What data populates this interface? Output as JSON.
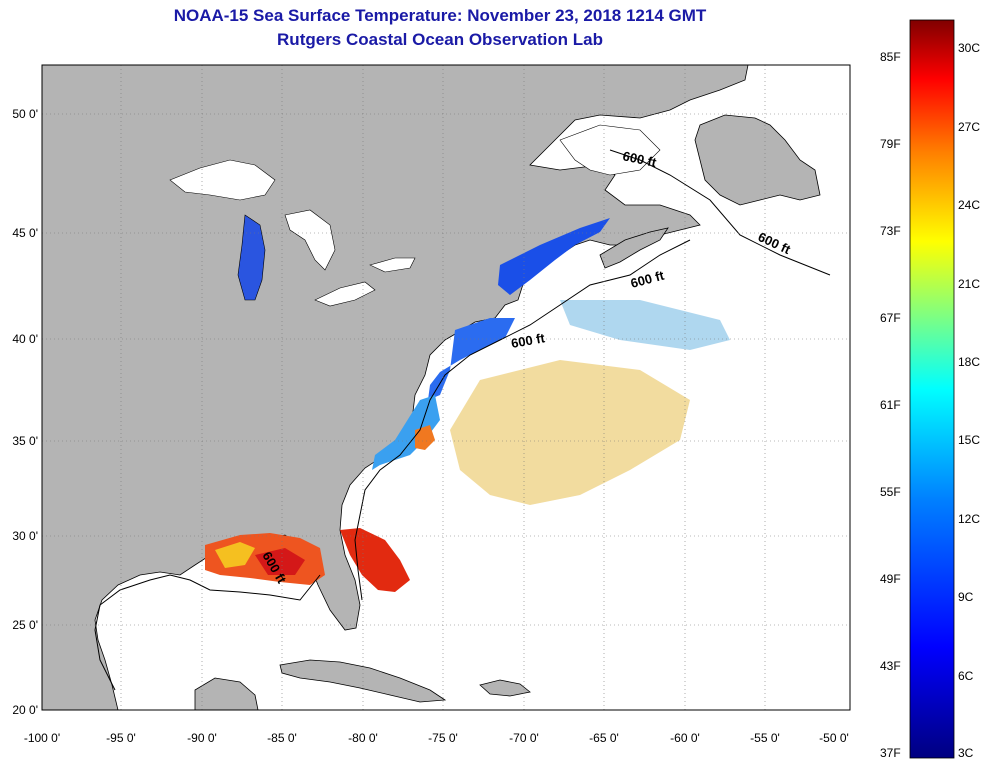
{
  "title": {
    "line1": "NOAA-15 Sea Surface Temperature:  November 23, 2018 1214 GMT",
    "line2": "Rutgers Coastal Ocean Observation Lab"
  },
  "map": {
    "lon_range": [
      -100,
      -50
    ],
    "lat_range": [
      20,
      52
    ],
    "lon_ticks": [
      "-100 0'",
      "-95 0'",
      "-90 0'",
      "-85 0'",
      "-80 0'",
      "-75 0'",
      "-70 0'",
      "-65 0'",
      "-60 0'",
      "-55 0'",
      "-50 0'"
    ],
    "lat_ticks": [
      "50 0'",
      "45 0'",
      "40 0'",
      "35 0'",
      "30 0'",
      "25 0'",
      "20 0'"
    ],
    "contour_labels": [
      {
        "text": "600 ft"
      },
      {
        "text": "600 ft"
      },
      {
        "text": "600 ft"
      },
      {
        "text": "600 ft"
      },
      {
        "text": "600 ft"
      }
    ],
    "land_color": "#b4b4b4",
    "ocean_color": "#ffffff"
  },
  "colorbar": {
    "fahrenheit": [
      "85F",
      "79F",
      "73F",
      "67F",
      "61F",
      "55F",
      "49F",
      "43F",
      "37F"
    ],
    "celsius": [
      "30C",
      "27C",
      "24C",
      "21C",
      "18C",
      "15C",
      "12C",
      "9C",
      "6C",
      "3C"
    ],
    "colors": [
      "#800000",
      "#ff0000",
      "#ff8000",
      "#ffff00",
      "#80ff80",
      "#00ffff",
      "#0080ff",
      "#0000ff",
      "#000080"
    ]
  }
}
